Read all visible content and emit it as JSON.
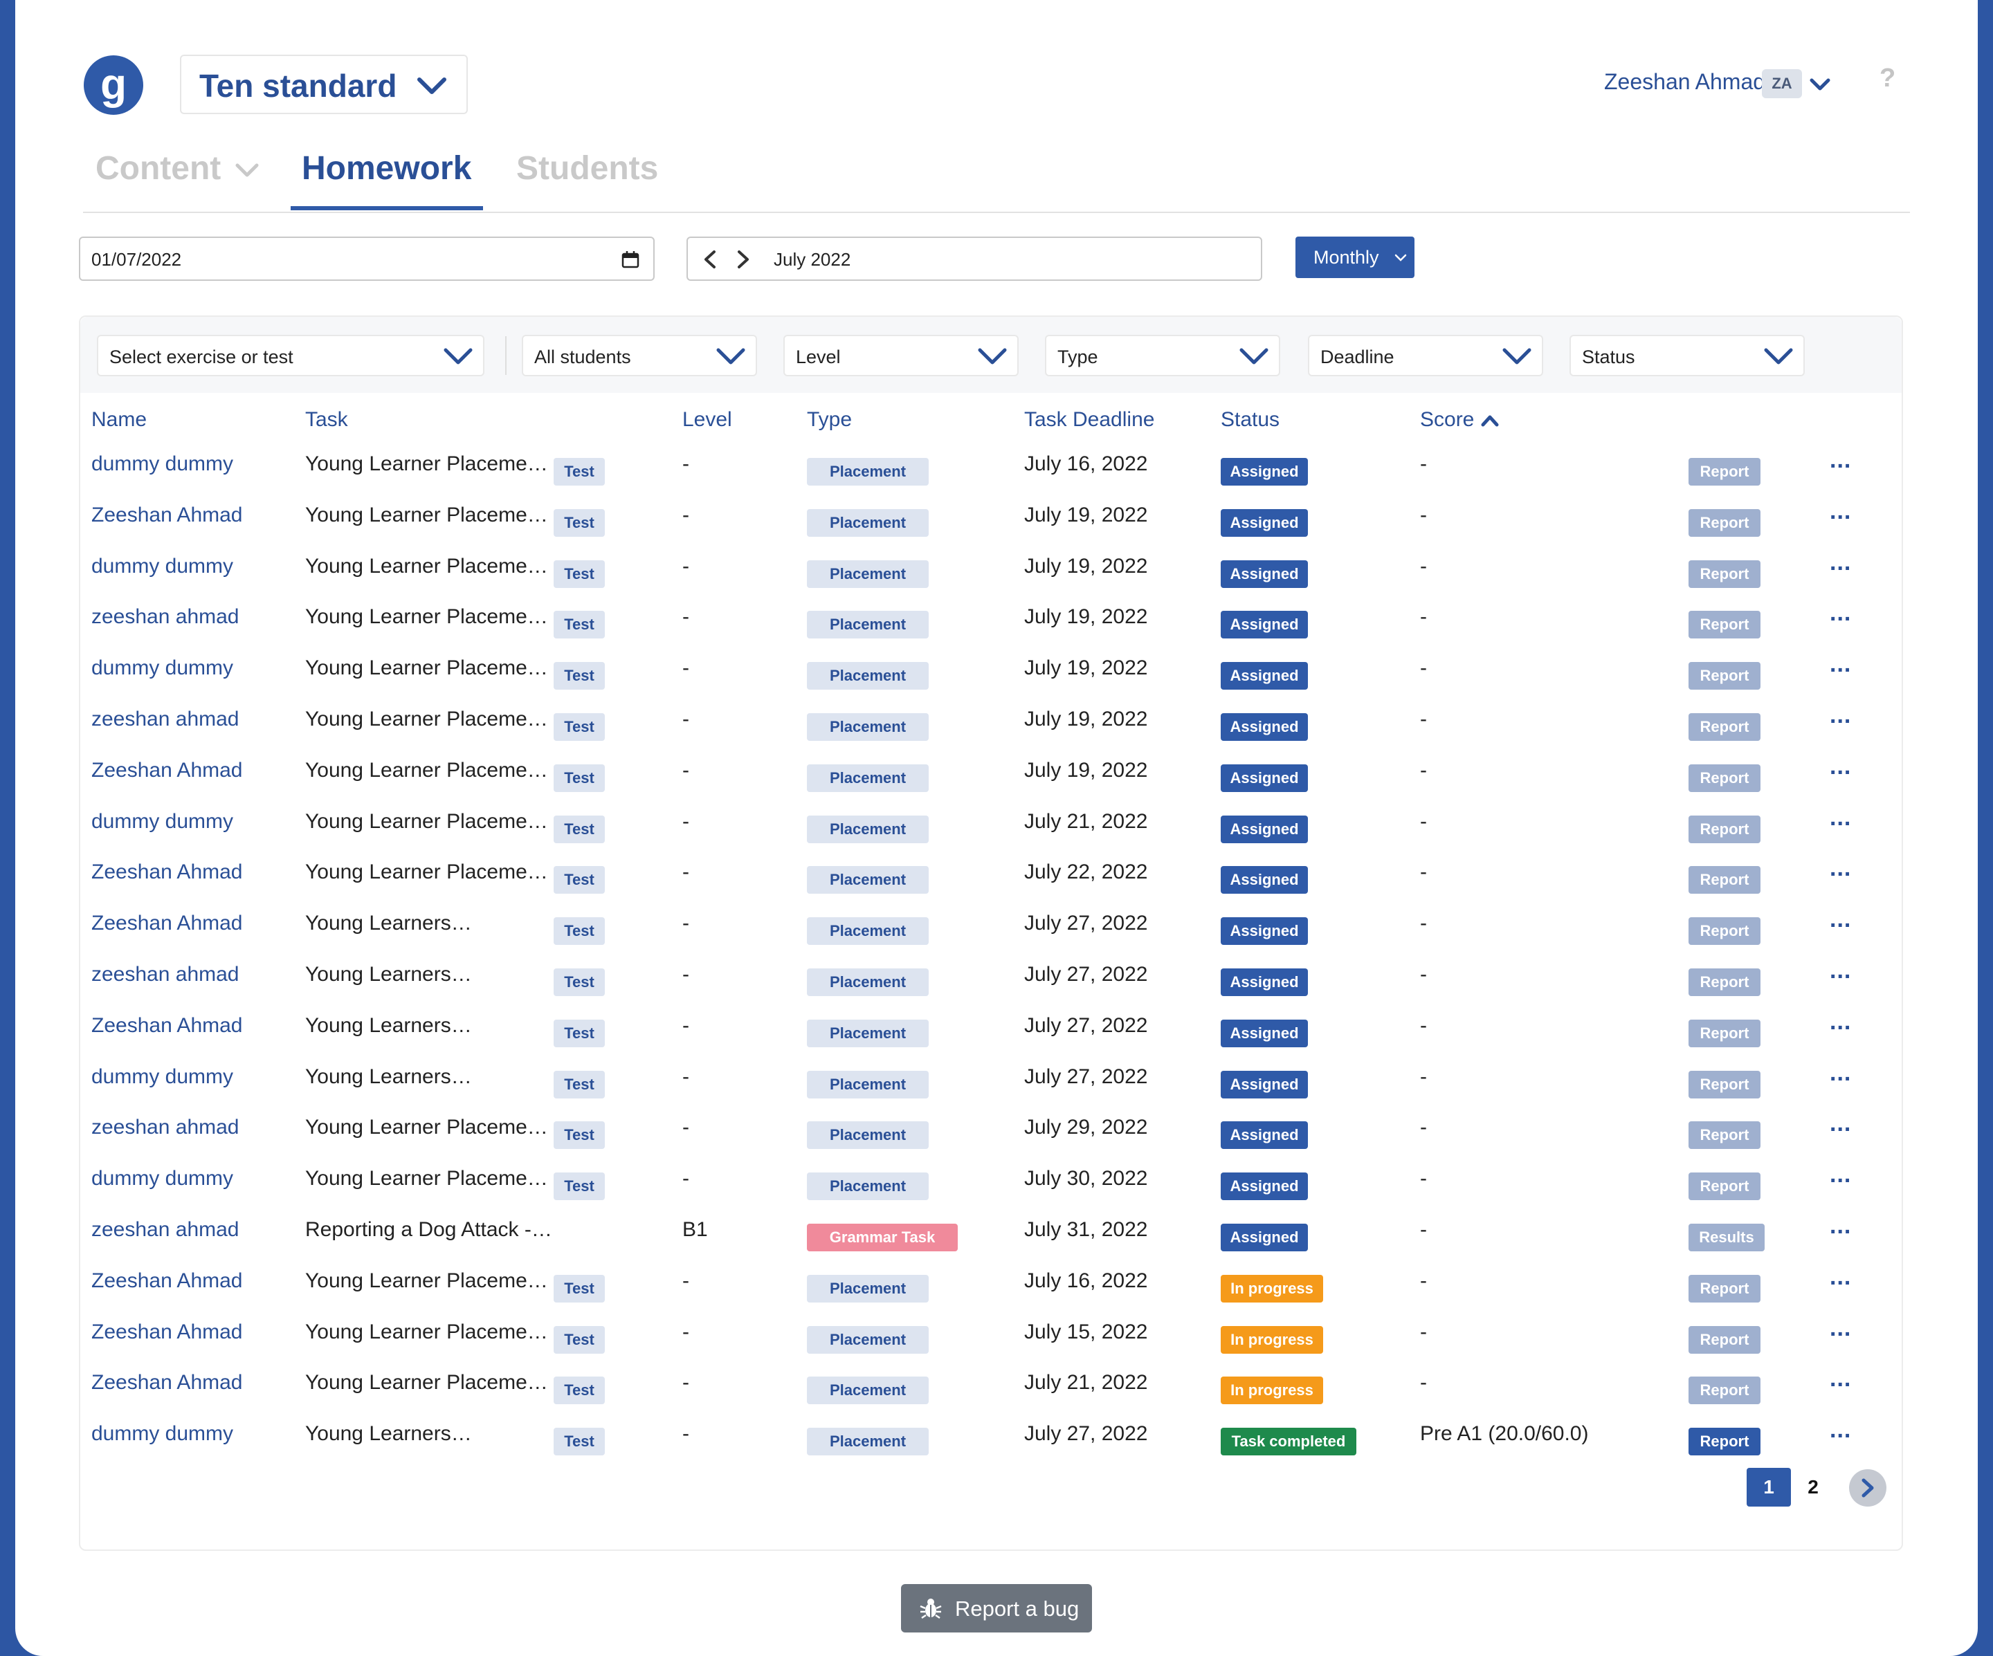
{
  "header": {
    "logo_letter": "g",
    "class_name": "Ten standard",
    "user_name": "Zeeshan Ahmad",
    "user_initials": "ZA",
    "help": "?"
  },
  "tabs": [
    {
      "label": "Content",
      "active": false
    },
    {
      "label": "Homework",
      "active": true
    },
    {
      "label": "Students",
      "active": false
    }
  ],
  "date_controls": {
    "date_value": "01/07/2022",
    "period_label": "July 2022",
    "view_mode": "Monthly"
  },
  "filters": [
    {
      "label": "Select exercise or test"
    },
    {
      "label": "All students"
    },
    {
      "label": "Level"
    },
    {
      "label": "Type"
    },
    {
      "label": "Deadline"
    },
    {
      "label": "Status"
    }
  ],
  "table": {
    "columns": [
      "Name",
      "Task",
      "Level",
      "Type",
      "Task Deadline",
      "Status",
      "Score"
    ],
    "sort_column": "Score",
    "sort_direction": "ascending",
    "rows": [
      {
        "name": "dummy dummy",
        "task": "Young Learner Placeme…",
        "tag": "Test",
        "level": "-",
        "type": "Placement",
        "deadline": "July 16, 2022",
        "status": "Assigned",
        "score": "-",
        "action": "Report"
      },
      {
        "name": "Zeeshan Ahmad",
        "task": "Young Learner Placeme…",
        "tag": "Test",
        "level": "-",
        "type": "Placement",
        "deadline": "July 19, 2022",
        "status": "Assigned",
        "score": "-",
        "action": "Report"
      },
      {
        "name": "dummy dummy",
        "task": "Young Learner Placeme…",
        "tag": "Test",
        "level": "-",
        "type": "Placement",
        "deadline": "July 19, 2022",
        "status": "Assigned",
        "score": "-",
        "action": "Report"
      },
      {
        "name": "zeeshan ahmad",
        "task": "Young Learner Placeme…",
        "tag": "Test",
        "level": "-",
        "type": "Placement",
        "deadline": "July 19, 2022",
        "status": "Assigned",
        "score": "-",
        "action": "Report"
      },
      {
        "name": "dummy dummy",
        "task": "Young Learner Placeme…",
        "tag": "Test",
        "level": "-",
        "type": "Placement",
        "deadline": "July 19, 2022",
        "status": "Assigned",
        "score": "-",
        "action": "Report"
      },
      {
        "name": "zeeshan ahmad",
        "task": "Young Learner Placeme…",
        "tag": "Test",
        "level": "-",
        "type": "Placement",
        "deadline": "July 19, 2022",
        "status": "Assigned",
        "score": "-",
        "action": "Report"
      },
      {
        "name": "Zeeshan Ahmad",
        "task": "Young Learner Placeme…",
        "tag": "Test",
        "level": "-",
        "type": "Placement",
        "deadline": "July 19, 2022",
        "status": "Assigned",
        "score": "-",
        "action": "Report"
      },
      {
        "name": "dummy dummy",
        "task": "Young Learner Placeme…",
        "tag": "Test",
        "level": "-",
        "type": "Placement",
        "deadline": "July 21, 2022",
        "status": "Assigned",
        "score": "-",
        "action": "Report"
      },
      {
        "name": "Zeeshan Ahmad",
        "task": "Young Learner Placeme…",
        "tag": "Test",
        "level": "-",
        "type": "Placement",
        "deadline": "July 22, 2022",
        "status": "Assigned",
        "score": "-",
        "action": "Report"
      },
      {
        "name": "Zeeshan Ahmad",
        "task": "Young Learners…",
        "tag": "Test",
        "level": "-",
        "type": "Placement",
        "deadline": "July 27, 2022",
        "status": "Assigned",
        "score": "-",
        "action": "Report"
      },
      {
        "name": "zeeshan ahmad",
        "task": "Young Learners…",
        "tag": "Test",
        "level": "-",
        "type": "Placement",
        "deadline": "July 27, 2022",
        "status": "Assigned",
        "score": "-",
        "action": "Report"
      },
      {
        "name": "Zeeshan Ahmad",
        "task": "Young Learners…",
        "tag": "Test",
        "level": "-",
        "type": "Placement",
        "deadline": "July 27, 2022",
        "status": "Assigned",
        "score": "-",
        "action": "Report"
      },
      {
        "name": "dummy dummy",
        "task": "Young Learners…",
        "tag": "Test",
        "level": "-",
        "type": "Placement",
        "deadline": "July 27, 2022",
        "status": "Assigned",
        "score": "-",
        "action": "Report"
      },
      {
        "name": "zeeshan ahmad",
        "task": "Young Learner Placeme…",
        "tag": "Test",
        "level": "-",
        "type": "Placement",
        "deadline": "July 29, 2022",
        "status": "Assigned",
        "score": "-",
        "action": "Report"
      },
      {
        "name": "dummy dummy",
        "task": "Young Learner Placeme…",
        "tag": "Test",
        "level": "-",
        "type": "Placement",
        "deadline": "July 30, 2022",
        "status": "Assigned",
        "score": "-",
        "action": "Report"
      },
      {
        "name": "zeeshan ahmad",
        "task": "Reporting a Dog Attack -…",
        "tag": "",
        "level": "B1",
        "type": "Grammar Task",
        "deadline": "July 31, 2022",
        "status": "Assigned",
        "score": "-",
        "action": "Results"
      },
      {
        "name": "Zeeshan Ahmad",
        "task": "Young Learner Placeme…",
        "tag": "Test",
        "level": "-",
        "type": "Placement",
        "deadline": "July 16, 2022",
        "status": "In progress",
        "score": "-",
        "action": "Report"
      },
      {
        "name": "Zeeshan Ahmad",
        "task": "Young Learner Placeme…",
        "tag": "Test",
        "level": "-",
        "type": "Placement",
        "deadline": "July 15, 2022",
        "status": "In progress",
        "score": "-",
        "action": "Report"
      },
      {
        "name": "Zeeshan Ahmad",
        "task": "Young Learner Placeme…",
        "tag": "Test",
        "level": "-",
        "type": "Placement",
        "deadline": "July 21, 2022",
        "status": "In progress",
        "score": "-",
        "action": "Report"
      },
      {
        "name": "dummy dummy",
        "task": "Young Learners…",
        "tag": "Test",
        "level": "-",
        "type": "Placement",
        "deadline": "July 27, 2022",
        "status": "Task completed",
        "score": "Pre A1 (20.0/60.0)",
        "action": "Report"
      }
    ],
    "more_icon": "..."
  },
  "pagination": {
    "pages": [
      "1",
      "2"
    ],
    "current": "1"
  },
  "footer": {
    "report_bug_label": "Report a bug"
  },
  "colors": {
    "brand": "#2f5aa8",
    "in_progress": "#f59a1a",
    "completed": "#1e8a4c",
    "grammar": "#f08a9b",
    "report_disabled": "#9fb0cf"
  }
}
